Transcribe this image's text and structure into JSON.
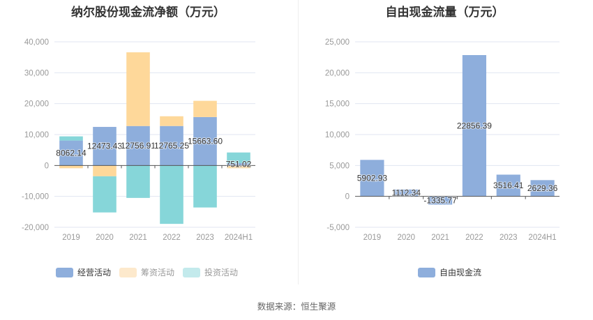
{
  "source_text": "数据来源：恒生聚源",
  "colors": {
    "operating": "#8eaedc",
    "financing": "#fed89a",
    "investing": "#86d6d9",
    "financing_legend": "#fde9cc",
    "investing_legend": "#c3eaec",
    "free_cash_flow": "#8eaedc",
    "grid": "#e0e6f1",
    "axis": "#555555"
  },
  "chart_data": [
    {
      "type": "bar",
      "stacked": true,
      "title": "纳尔股份现金流净额（万元）",
      "categories": [
        "2019",
        "2020",
        "2021",
        "2022",
        "2023",
        "2024H1"
      ],
      "ylim": [
        -20000,
        40000
      ],
      "yticks": [
        40000,
        30000,
        20000,
        10000,
        0,
        -10000,
        -20000
      ],
      "ytick_labels": [
        "40,000",
        "30,000",
        "20,000",
        "10,000",
        "0",
        "-10,000",
        "-20,000"
      ],
      "grid": true,
      "legend_position": "bottom",
      "series": [
        {
          "name": "经营活动",
          "key": "operating",
          "values": [
            8062.14,
            12473.43,
            12756.91,
            12765.25,
            15663.6,
            751.02
          ],
          "labels": [
            "8062.14",
            "12473.43",
            "12756.91",
            "12765.25",
            "15663.60",
            "751.02"
          ],
          "legend_dim": false
        },
        {
          "name": "筹资活动",
          "key": "financing",
          "values": [
            -900,
            -3500,
            23850,
            3150,
            5250,
            -900
          ],
          "legend_dim": true
        },
        {
          "name": "投资活动",
          "key": "investing",
          "values": [
            1350,
            -11700,
            -10500,
            -18900,
            -13600,
            3450
          ],
          "legend_dim": true
        }
      ]
    },
    {
      "type": "bar",
      "stacked": false,
      "title": "自由现金流量（万元）",
      "categories": [
        "2019",
        "2020",
        "2021",
        "2022",
        "2023",
        "2024H1"
      ],
      "ylim": [
        -5000,
        25000
      ],
      "yticks": [
        25000,
        20000,
        15000,
        10000,
        5000,
        0,
        -5000
      ],
      "ytick_labels": [
        "25,000",
        "20,000",
        "15,000",
        "10,000",
        "5,000",
        "0",
        "-5,000"
      ],
      "grid": true,
      "legend_position": "bottom",
      "series": [
        {
          "name": "自由现金流",
          "key": "free_cash_flow",
          "values": [
            5902.93,
            1112.34,
            -1335.77,
            22856.39,
            3516.41,
            2629.36
          ],
          "labels": [
            "5902.93",
            "1112.34",
            "-1335.77",
            "22856.39",
            "3516.41",
            "2629.36"
          ],
          "legend_dim": false
        }
      ]
    }
  ]
}
